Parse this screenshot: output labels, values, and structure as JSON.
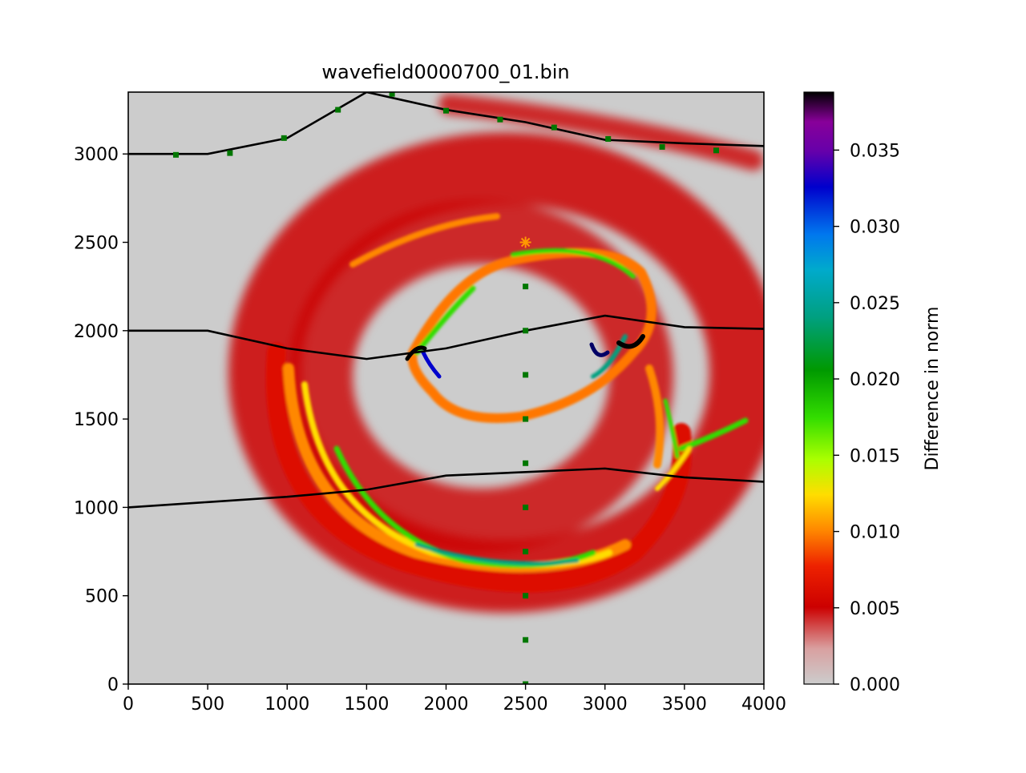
{
  "chart_data": {
    "type": "heatmap",
    "title": "wavefield0000700_01.bin",
    "xlim": [
      0,
      4000
    ],
    "ylim": [
      0,
      3350
    ],
    "x_ticks": [
      0,
      500,
      1000,
      1500,
      2000,
      2500,
      3000,
      3500,
      4000
    ],
    "x_tick_labels": [
      "0",
      "500",
      "1000",
      "1500",
      "2000",
      "2500",
      "3000",
      "3500",
      "4000"
    ],
    "y_ticks": [
      0,
      500,
      1000,
      1500,
      2000,
      2500,
      3000
    ],
    "y_tick_labels": [
      "0",
      "500",
      "1000",
      "1500",
      "2000",
      "2500",
      "3000"
    ],
    "colorbar": {
      "label": "Difference in norm",
      "range": [
        0,
        0.0388
      ],
      "ticks": [
        0,
        0.005,
        0.01,
        0.015,
        0.02,
        0.025,
        0.03,
        0.035
      ],
      "tick_labels": [
        "0.000",
        "0.005",
        "0.010",
        "0.015",
        "0.020",
        "0.025",
        "0.030",
        "0.035"
      ],
      "stops": [
        {
          "v": 0.0,
          "color": "#cccccc"
        },
        {
          "v": 0.06,
          "color": "#d9a0a0"
        },
        {
          "v": 0.13,
          "color": "#cc0000"
        },
        {
          "v": 0.2,
          "color": "#ee2200"
        },
        {
          "v": 0.26,
          "color": "#ff8800"
        },
        {
          "v": 0.32,
          "color": "#ffdd00"
        },
        {
          "v": 0.38,
          "color": "#aaff00"
        },
        {
          "v": 0.45,
          "color": "#33dd00"
        },
        {
          "v": 0.53,
          "color": "#009900"
        },
        {
          "v": 0.62,
          "color": "#00a080"
        },
        {
          "v": 0.7,
          "color": "#00aacc"
        },
        {
          "v": 0.76,
          "color": "#0077ee"
        },
        {
          "v": 0.84,
          "color": "#0000cc"
        },
        {
          "v": 0.9,
          "color": "#6600aa"
        },
        {
          "v": 0.95,
          "color": "#880099"
        },
        {
          "v": 1.0,
          "color": "#000000"
        }
      ]
    },
    "background_color": "#cccccc",
    "layer_boundaries": [
      {
        "x": [
          0,
          500,
          1000,
          1500,
          2000,
          2500,
          3000,
          3500,
          4000
        ],
        "y": [
          3000,
          3000,
          3090,
          3350,
          3250,
          3180,
          3080,
          3060,
          3045
        ]
      },
      {
        "x": [
          0,
          500,
          1000,
          1500,
          2000,
          2500,
          3000,
          3500,
          4000
        ],
        "y": [
          2000,
          2000,
          1900,
          1840,
          1900,
          2000,
          2085,
          2020,
          2010
        ]
      },
      {
        "x": [
          0,
          500,
          1000,
          1500,
          2000,
          2500,
          3000,
          3500,
          4000
        ],
        "y": [
          1000,
          1030,
          1060,
          1100,
          1180,
          1200,
          1220,
          1170,
          1145
        ]
      }
    ],
    "receivers": {
      "color": "#007700",
      "x": [
        300,
        640,
        980,
        1320,
        1660,
        2000,
        2340,
        2680,
        3020,
        3360,
        3700,
        2500,
        2500,
        2500,
        2500,
        2500,
        2500,
        2500,
        2500,
        2500,
        2500
      ],
      "y": [
        2995,
        3005,
        3090,
        3250,
        3340,
        3245,
        3195,
        3150,
        3085,
        3040,
        3020,
        2250,
        2000,
        1750,
        1500,
        1250,
        1000,
        750,
        500,
        250,
        0
      ]
    },
    "source": {
      "x": 2500,
      "y": 2500,
      "color": "#ff9900"
    }
  }
}
